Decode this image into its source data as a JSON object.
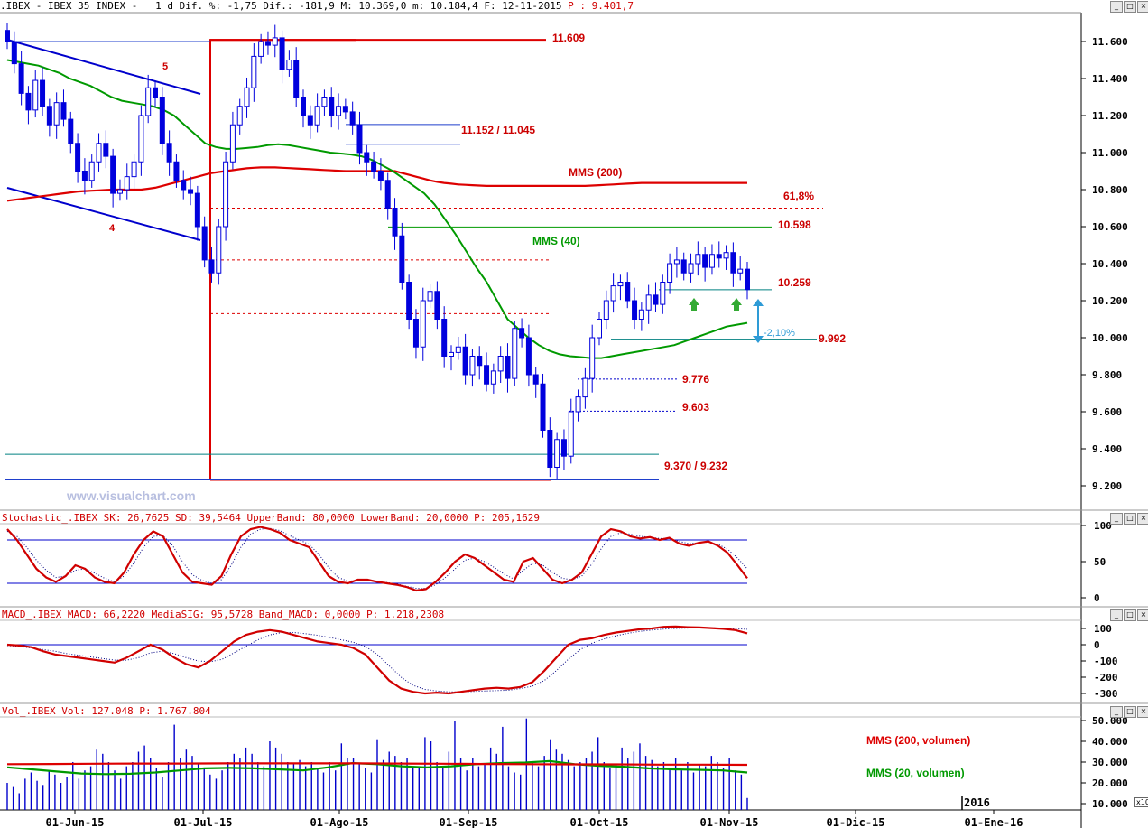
{
  "window": {
    "header": ".IBEX - IBEX 35 INDEX -   1 d Dif. %: -1,75 Dif.: -181,9 M: 10.369,0 m: 10.184,4 F: 12-11-2015",
    "header_p": "P : 9.401,7",
    "buttons": [
      "_",
      "□",
      "×"
    ],
    "watermark": "www.visualchart.com"
  },
  "colors": {
    "candle": "#0000dd",
    "mms200": "#dd0000",
    "mms40": "#009900",
    "annotation": "#cc0000",
    "fib": "#dd0000",
    "channel": "#0000cc",
    "hline_blue": "#1f3fcc",
    "hline_teal": "#008080",
    "arrow_green": "#33aa33",
    "range_cyan": "#2e9bd6"
  },
  "chart_data": [
    {
      "type": "candlestick",
      "title": "IBEX 35 INDEX",
      "y_ticks": [
        "11.600",
        "11.400",
        "11.200",
        "11.000",
        "10.800",
        "10.600",
        "10.400",
        "10.200",
        "10.000",
        "9.800",
        "9.600",
        "9.400",
        "9.200"
      ],
      "ylim": [
        9130,
        11690
      ],
      "x_ticks": [
        "01-Jun-15",
        "01-Jul-15",
        "01-Ago-15",
        "01-Sep-15",
        "01-Oct-15",
        "01-Nov-15",
        "01-Dic-15",
        "01-Ene-16"
      ],
      "year_marker": "2016",
      "close": [
        11600,
        11480,
        11320,
        11230,
        11390,
        11250,
        11150,
        11270,
        11180,
        11050,
        10900,
        10850,
        10950,
        11050,
        10980,
        10780,
        10800,
        10870,
        10950,
        11200,
        11350,
        11300,
        11050,
        10950,
        10850,
        10800,
        10780,
        10600,
        10420,
        10350,
        10600,
        10950,
        11150,
        11250,
        11350,
        11520,
        11600,
        11580,
        11620,
        11450,
        11500,
        11300,
        11200,
        11150,
        11250,
        11300,
        11200,
        11250,
        11220,
        11150,
        11000,
        10950,
        10900,
        10850,
        10700,
        10550,
        10300,
        10100,
        9950,
        10200,
        10250,
        10100,
        9900,
        9920,
        9950,
        9800,
        9900,
        9850,
        9750,
        9820,
        9900,
        9780,
        10050,
        10000,
        9800,
        9750,
        9500,
        9300,
        9450,
        9360,
        9600,
        9680,
        9780,
        10000,
        10100,
        10200,
        10280,
        10300,
        10200,
        10100,
        10150,
        10230,
        10180,
        10300,
        10400,
        10420,
        10350,
        10400,
        10450,
        10380,
        10450,
        10430,
        10460,
        10350,
        10370,
        10260
      ],
      "sma200": [
        10740,
        10745,
        10750,
        10755,
        10760,
        10765,
        10770,
        10775,
        10780,
        10785,
        10790,
        10792,
        10794,
        10796,
        10798,
        10800,
        10800,
        10800,
        10800,
        10800,
        10805,
        10810,
        10820,
        10830,
        10840,
        10850,
        10860,
        10870,
        10880,
        10890,
        10895,
        10900,
        10905,
        10910,
        10915,
        10918,
        10920,
        10920,
        10920,
        10918,
        10916,
        10914,
        10912,
        10910,
        10908,
        10906,
        10904,
        10902,
        10900,
        10900,
        10900,
        10900,
        10900,
        10900,
        10900,
        10900,
        10890,
        10880,
        10870,
        10860,
        10850,
        10842,
        10836,
        10832,
        10828,
        10826,
        10824,
        10822,
        10820,
        10820,
        10820,
        10820,
        10820,
        10820,
        10820,
        10820,
        10820,
        10820,
        10820,
        10820,
        10820,
        10820,
        10820,
        10822,
        10824,
        10826,
        10828,
        10830,
        10832,
        10834,
        10836,
        10836,
        10836,
        10836,
        10836,
        10836,
        10836,
        10836,
        10836,
        10836,
        10836,
        10836,
        10836,
        10836,
        10836,
        10836
      ],
      "sma40": [
        11500,
        11490,
        11480,
        11470,
        11450,
        11430,
        11400,
        11380,
        11360,
        11330,
        11300,
        11280,
        11270,
        11260,
        11250,
        11230,
        11200,
        11150,
        11100,
        11050,
        11030,
        11020,
        11020,
        11025,
        11030,
        11040,
        11045,
        11040,
        11030,
        11020,
        11010,
        11000,
        10995,
        10990,
        10980,
        10960,
        10930,
        10900,
        10860,
        10820,
        10780,
        10720,
        10640,
        10560,
        10470,
        10380,
        10300,
        10200,
        10100,
        10050,
        10000,
        9960,
        9930,
        9910,
        9900,
        9895,
        9890,
        9890,
        9900,
        9910,
        9920,
        9930,
        9940,
        9950,
        9960,
        9980,
        10000,
        10020,
        10040,
        10060,
        10070,
        10080
      ],
      "annotations": [
        "11.609",
        "11.152 / 11.045",
        "MMS (200)",
        "61,8%",
        "10.598",
        "MMS (40)",
        "10.259",
        "9.992",
        "-2,10%",
        "9.776",
        "9.603",
        "9.370 / 9.232",
        "5",
        "4"
      ],
      "levels": [
        11609,
        11152,
        11045,
        10598,
        10259,
        9992,
        9776,
        9603,
        9370,
        9232
      ],
      "fibonacci_levels": [
        10700,
        10420,
        10130
      ],
      "fib_label": "61,8%"
    },
    {
      "type": "line",
      "title": "Stochastic_.IBEX SK: 26,7625 SD: 39,5464 UpperBand: 80,0000 LowerBand: 20,0000 P: 205,1629",
      "header_p": "P: 205,1629",
      "y_ticks": [
        "100",
        "50",
        "0"
      ],
      "ylim": [
        0,
        100
      ],
      "bands": [
        80,
        20
      ],
      "series": [
        {
          "name": "SK",
          "values": [
            95,
            80,
            60,
            40,
            28,
            22,
            30,
            45,
            40,
            28,
            22,
            20,
            35,
            60,
            80,
            92,
            85,
            60,
            35,
            22,
            20,
            18,
            30,
            60,
            85,
            95,
            98,
            95,
            90,
            80,
            75,
            70,
            50,
            30,
            22,
            20,
            25,
            25,
            22,
            20,
            18,
            15,
            10,
            12,
            22,
            35,
            50,
            60,
            55,
            45,
            35,
            25,
            22,
            50,
            55,
            40,
            25,
            20,
            25,
            35,
            60,
            85,
            95,
            92,
            85,
            82,
            84,
            80,
            83,
            75,
            72,
            76,
            78,
            72,
            62,
            45,
            27
          ]
        },
        {
          "name": "SD",
          "values": [
            92,
            85,
            70,
            52,
            38,
            28,
            30,
            38,
            40,
            34,
            27,
            22,
            30,
            48,
            70,
            85,
            86,
            72,
            50,
            32,
            24,
            20,
            25,
            45,
            70,
            88,
            95,
            96,
            93,
            86,
            80,
            74,
            60,
            42,
            28,
            23,
            24,
            25,
            23,
            21,
            19,
            16,
            13,
            13,
            18,
            28,
            40,
            52,
            55,
            50,
            42,
            33,
            26,
            38,
            48,
            45,
            35,
            27,
            25,
            30,
            46,
            68,
            85,
            90,
            88,
            85,
            84,
            82,
            82,
            78,
            75,
            76,
            77,
            74,
            67,
            55,
            40
          ]
        }
      ]
    },
    {
      "type": "line",
      "title": "MACD_.IBEX MACD: 66,2220 MediaSIG: 95,5728 Band_MACD: 0,0000 P: 1.218,2308",
      "header_p": "P: 1.218,2308",
      "y_ticks": [
        "100",
        "0",
        "-100",
        "-200",
        "-300"
      ],
      "ylim": [
        -330,
        140
      ],
      "band": 0,
      "series": [
        {
          "name": "MACD",
          "values": [
            0,
            -5,
            -15,
            -40,
            -60,
            -70,
            -80,
            -90,
            -100,
            -110,
            -80,
            -40,
            0,
            -30,
            -80,
            -120,
            -140,
            -100,
            -40,
            20,
            60,
            80,
            90,
            80,
            60,
            40,
            20,
            10,
            0,
            -20,
            -60,
            -140,
            -220,
            -270,
            -290,
            -300,
            -295,
            -300,
            -290,
            -280,
            -270,
            -265,
            -270,
            -260,
            -230,
            -160,
            -80,
            0,
            30,
            40,
            60,
            75,
            85,
            95,
            100,
            110,
            112,
            108,
            106,
            102,
            98,
            90,
            70
          ]
        },
        {
          "name": "MediaSIG",
          "values": [
            -5,
            -10,
            -20,
            -30,
            -40,
            -55,
            -65,
            -75,
            -85,
            -95,
            -95,
            -80,
            -50,
            -40,
            -55,
            -80,
            -100,
            -105,
            -90,
            -50,
            -10,
            30,
            60,
            75,
            75,
            68,
            58,
            45,
            30,
            15,
            -10,
            -60,
            -130,
            -200,
            -250,
            -275,
            -285,
            -290,
            -290,
            -288,
            -285,
            -282,
            -280,
            -270,
            -255,
            -220,
            -160,
            -90,
            -30,
            10,
            35,
            55,
            70,
            82,
            90,
            96,
            100,
            102,
            104,
            104,
            102,
            99,
            95
          ]
        }
      ]
    },
    {
      "type": "bar",
      "title": "Vol_.IBEX Vol: 127.048 P: 1.767.804",
      "header_p": "P: 1.767.804",
      "y_ticks": [
        "50.000",
        "40.000",
        "30.000",
        "20.000",
        "10.000"
      ],
      "ylim": [
        8000,
        52000
      ],
      "axis_corner": "x10",
      "values": [
        20000,
        18000,
        15000,
        22000,
        25000,
        21000,
        19000,
        26000,
        24000,
        20000,
        23000,
        30000,
        22000,
        26000,
        28000,
        36000,
        34000,
        30000,
        26000,
        22000,
        28000,
        30000,
        35000,
        38000,
        32000,
        27000,
        23000,
        30000,
        48000,
        32000,
        36000,
        33000,
        29000,
        27000,
        24000,
        22000,
        26000,
        30000,
        34000,
        32000,
        37000,
        34000,
        30000,
        28000,
        40000,
        37000,
        34000,
        30000,
        29000,
        31000,
        28000,
        30000,
        27000,
        25000,
        30000,
        26000,
        39000,
        32000,
        32000,
        29000,
        27000,
        25000,
        41000,
        31000,
        35000,
        33000,
        30000,
        32000,
        28000,
        27000,
        42000,
        40000,
        30000,
        27000,
        35000,
        50000,
        32000,
        26000,
        32000,
        28000,
        29000,
        37000,
        34000,
        47000,
        28000,
        25000,
        24000,
        51000,
        30000,
        28000,
        33000,
        41000,
        36000,
        34000,
        31000,
        28000,
        30000,
        32000,
        35000,
        42000,
        30000,
        27000,
        29000,
        37000,
        32000,
        35000,
        39000,
        33000,
        31000,
        28000,
        30000,
        27000,
        32000,
        26000,
        30000,
        25000,
        29000,
        28000,
        33000,
        30000,
        27000,
        32000,
        26000,
        24000,
        12700
      ],
      "series": [
        {
          "name": "MMS (200, volumen)",
          "values": [
            29000,
            29100,
            29200,
            29300,
            29300,
            29400,
            29400,
            29400,
            29400,
            29300,
            29200,
            29100,
            29000,
            28900,
            28900,
            28800,
            28800,
            28700
          ]
        },
        {
          "name": "MMS (20, volumen)",
          "values": [
            27500,
            26500,
            25500,
            24500,
            24200,
            24400,
            25000,
            26000,
            27000,
            27200,
            27000,
            26500,
            26000,
            27500,
            29500,
            29000,
            28000,
            27500,
            28000,
            29000,
            29500,
            29800,
            30500,
            29000,
            28200,
            27800,
            27000,
            26500,
            26300,
            26000,
            25000
          ]
        }
      ]
    }
  ]
}
